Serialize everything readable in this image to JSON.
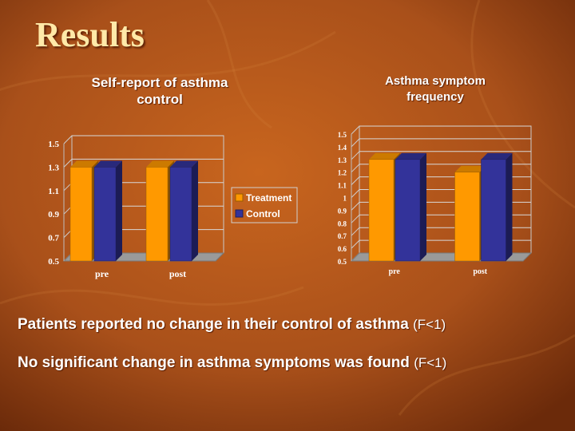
{
  "slide": {
    "title": "Results",
    "colors": {
      "background": "#b5561a",
      "title": "#ffe9a8",
      "text": "#ffffff"
    }
  },
  "captions": [
    {
      "text": "Patients reported no change in their control of asthma",
      "stat": "(F<1)"
    },
    {
      "text": "No significant change in asthma symptoms was found",
      "stat": "(F<1)"
    }
  ],
  "chart_data": [
    {
      "type": "bar",
      "title": "Self-report of asthma\ncontrol",
      "categories": [
        "pre",
        "post"
      ],
      "series": [
        {
          "name": "Treatment",
          "values": [
            1.3,
            1.3
          ],
          "color": "#ff9900"
        },
        {
          "name": "Control",
          "values": [
            1.3,
            1.3
          ],
          "color": "#33339a"
        }
      ],
      "ylim": [
        0.5,
        1.5
      ],
      "yticks": [
        0.5,
        0.7,
        0.9,
        1.1,
        1.3,
        1.5
      ],
      "ytick_labels": [
        "0.5",
        "0.7",
        "0.9",
        "1.1",
        "1.3",
        "1.5"
      ],
      "grid": true,
      "legend": "right"
    },
    {
      "type": "bar",
      "title": "Asthma symptom\nfrequency",
      "categories": [
        "pre",
        "post"
      ],
      "series": [
        {
          "name": "Treatment",
          "values": [
            1.3,
            1.2
          ],
          "color": "#ff9900"
        },
        {
          "name": "Control",
          "values": [
            1.3,
            1.3
          ],
          "color": "#33339a"
        }
      ],
      "ylim": [
        0.5,
        1.5
      ],
      "yticks": [
        0.5,
        0.6,
        0.7,
        0.8,
        0.9,
        1.0,
        1.1,
        1.2,
        1.3,
        1.4,
        1.5
      ],
      "ytick_labels": [
        "0.5",
        "0.6",
        "0.7",
        "0.8",
        "0.9",
        "1",
        "1.1",
        "1.2",
        "1.3",
        "1.4",
        "1.5"
      ],
      "grid": true,
      "legend": "none"
    }
  ]
}
